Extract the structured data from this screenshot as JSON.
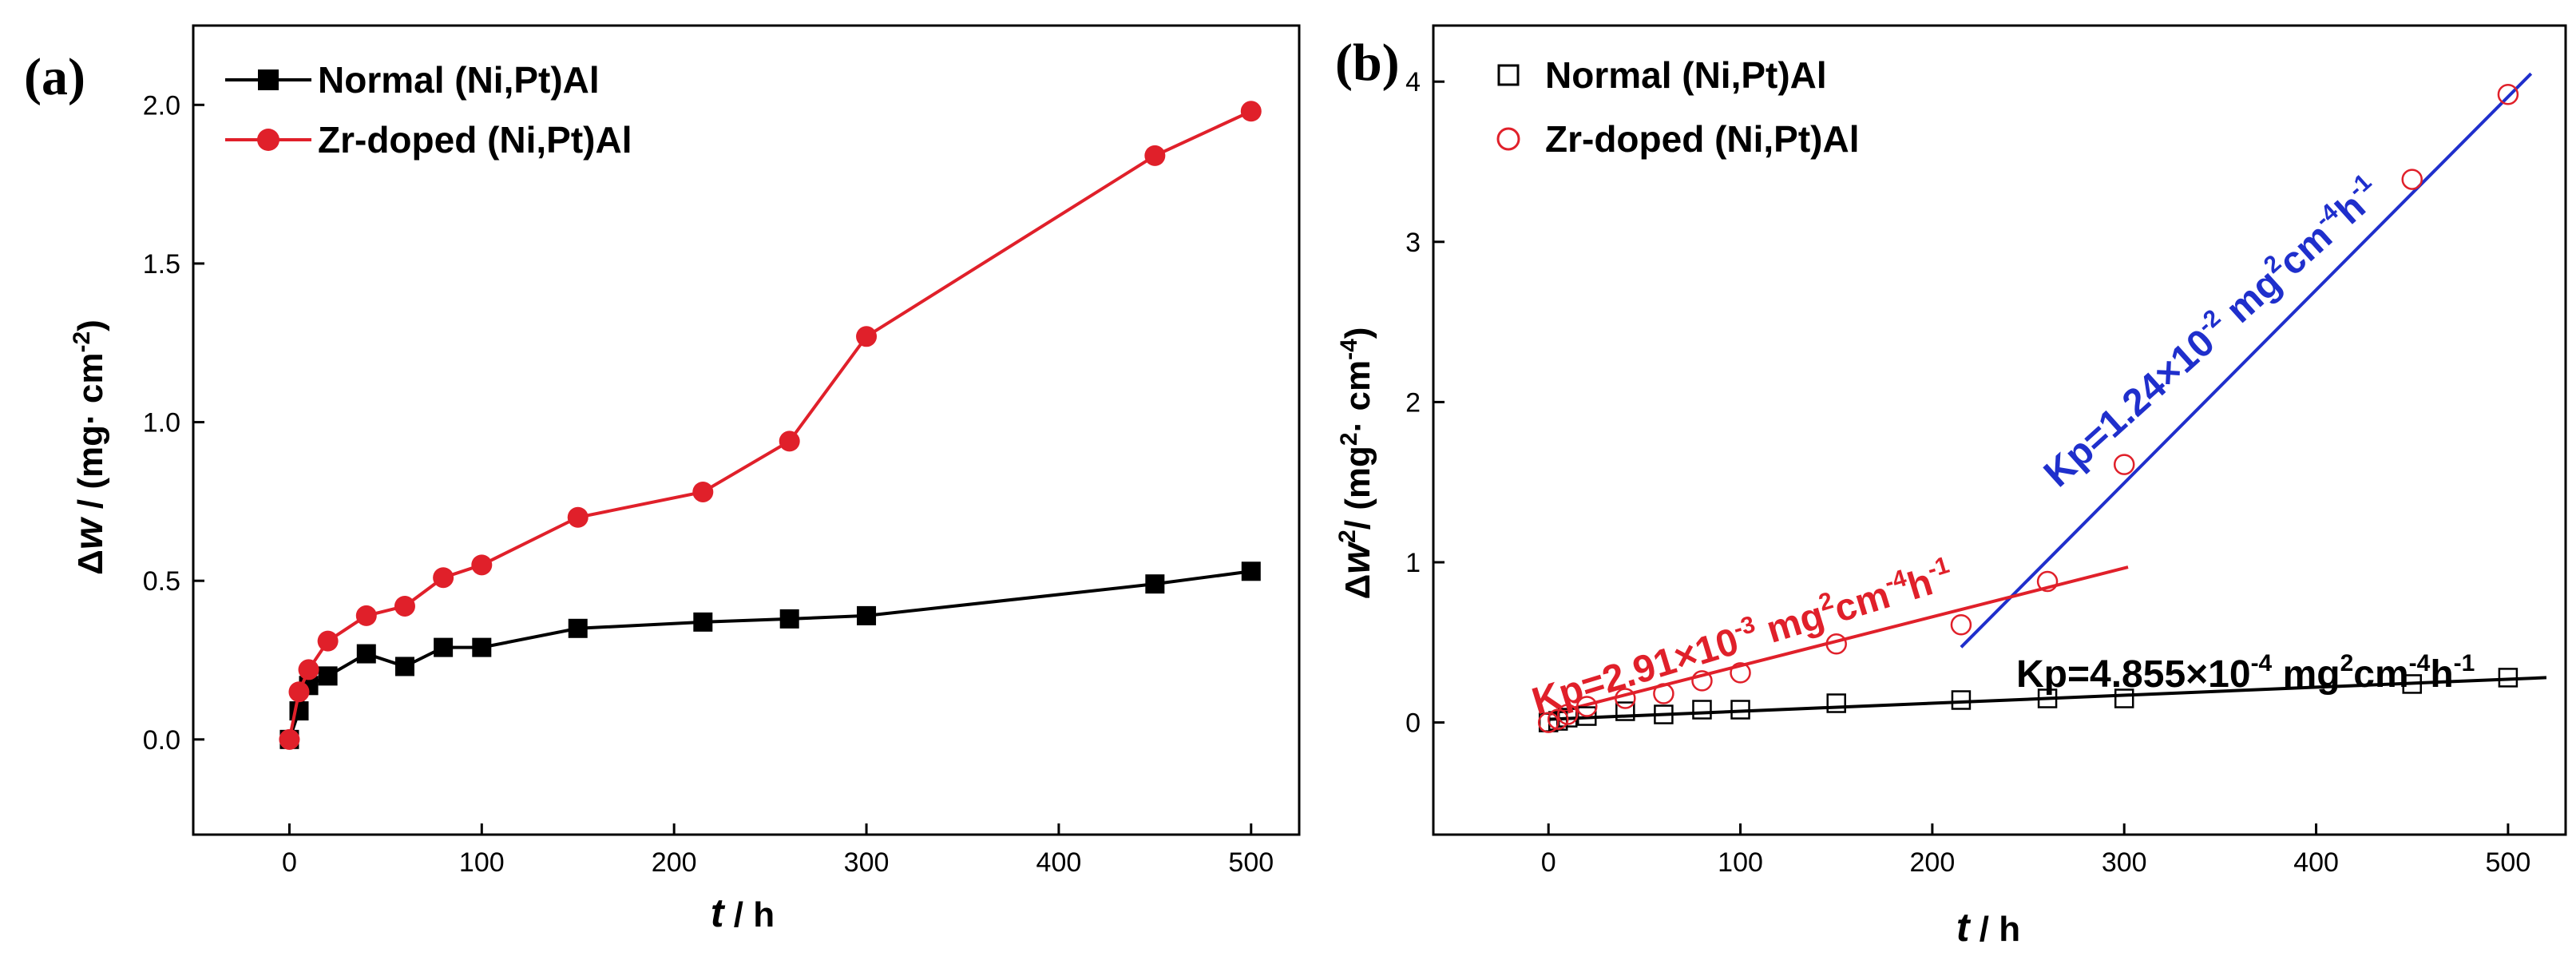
{
  "colors": {
    "normal": "#000000",
    "zr": "#e0202a",
    "fit_zr_late": "#1f2fcc",
    "fit_zr_early": "#e0202a",
    "fit_normal": "#000000"
  },
  "chart_data": [
    {
      "panel": "(a)",
      "type": "line",
      "xlabel_symbol": "t",
      "xlabel_unit": "/ h",
      "ylabel": "Δw / (mg·cm⁻²)",
      "ylabel_symbol": "w",
      "ylabel_prefix": "Δ",
      "ylabel_unit": "/ (mg· cm",
      "ylabel_exp": "-2",
      "xlim": [
        -50,
        525
      ],
      "ylim": [
        -0.3,
        2.25
      ],
      "xticks": [
        0,
        100,
        200,
        300,
        400,
        500
      ],
      "xtick_labels": [
        "0",
        "100",
        "200",
        "300",
        "400",
        "500"
      ],
      "yticks": [
        0.0,
        0.5,
        1.0,
        1.5,
        2.0
      ],
      "ytick_labels": [
        "0.0",
        "0.5",
        "1.0",
        "1.5",
        "2.0"
      ],
      "legend_position": "top-left",
      "series": [
        {
          "name": "Normal (Ni,Pt)Al",
          "color_key": "normal",
          "marker": "filled-square",
          "x": [
            0,
            5,
            10,
            20,
            40,
            60,
            80,
            100,
            150,
            215,
            260,
            300,
            450,
            500
          ],
          "y": [
            0,
            0.09,
            0.17,
            0.2,
            0.27,
            0.23,
            0.29,
            0.29,
            0.35,
            0.37,
            0.38,
            0.39,
            0.49,
            0.53
          ]
        },
        {
          "name": "Zr-doped (Ni,Pt)Al",
          "color_key": "zr",
          "marker": "filled-circle",
          "x": [
            0,
            5,
            10,
            20,
            40,
            60,
            80,
            100,
            150,
            215,
            260,
            300,
            450,
            500
          ],
          "y": [
            0,
            0.15,
            0.22,
            0.31,
            0.39,
            0.42,
            0.51,
            0.55,
            0.7,
            0.78,
            0.94,
            1.27,
            1.84,
            1.98
          ]
        }
      ]
    },
    {
      "panel": "(b)",
      "type": "scatter",
      "xlabel_symbol": "t",
      "xlabel_unit": "/ h",
      "ylabel": "Δw² / (mg²·cm⁻⁴)",
      "ylabel_prefix": "Δ",
      "ylabel_symbol": "w",
      "ylabel_unit": "/ (mg",
      "ylabel_unit2": "· cm",
      "ylabel_exp1": "2",
      "ylabel_exp2": "2",
      "ylabel_exp3": "-4",
      "xlim": [
        -60,
        530
      ],
      "ylim": [
        -0.7,
        4.35
      ],
      "xticks": [
        0,
        100,
        200,
        300,
        400,
        500
      ],
      "xtick_labels": [
        "0",
        "100",
        "200",
        "300",
        "400",
        "500"
      ],
      "yticks": [
        0,
        1,
        2,
        3,
        4
      ],
      "ytick_labels": [
        "0",
        "1",
        "2",
        "3",
        "4"
      ],
      "legend_position": "top-left",
      "series": [
        {
          "name": "Normal (Ni,Pt)Al",
          "color_key": "normal",
          "marker": "open-square",
          "x": [
            0,
            5,
            10,
            20,
            40,
            60,
            80,
            100,
            150,
            215,
            260,
            300,
            450,
            500
          ],
          "y": [
            0,
            0.01,
            0.03,
            0.04,
            0.07,
            0.05,
            0.08,
            0.08,
            0.12,
            0.14,
            0.15,
            0.15,
            0.24,
            0.28
          ]
        },
        {
          "name": "Zr-doped (Ni,Pt)Al",
          "color_key": "zr",
          "marker": "open-circle",
          "x": [
            0,
            5,
            10,
            20,
            40,
            60,
            80,
            100,
            150,
            215,
            260,
            300,
            450,
            500
          ],
          "y": [
            0,
            0.02,
            0.05,
            0.1,
            0.15,
            0.18,
            0.26,
            0.31,
            0.49,
            0.61,
            0.88,
            1.61,
            3.39,
            3.92
          ]
        }
      ],
      "fits": [
        {
          "name": "Zr-doped late stage",
          "color_key": "fit_zr_late",
          "x": [
            215,
            512
          ],
          "y": [
            0.47,
            4.05
          ]
        },
        {
          "name": "Zr-doped early stage",
          "color_key": "fit_zr_early",
          "x": [
            0,
            302
          ],
          "y": [
            0.05,
            0.97
          ]
        },
        {
          "name": "Normal",
          "color_key": "fit_normal",
          "x": [
            0,
            520
          ],
          "y": [
            0.02,
            0.28
          ]
        }
      ],
      "annotations": [
        {
          "color_key": "fit_zr_late",
          "prefix": "Kp=1.24×10",
          "exp": "-2",
          "mid": " mg",
          "exp2": "2",
          "mid2": "cm",
          "exp3": "-4",
          "end": "h",
          "exp4": "-1"
        },
        {
          "color_key": "fit_zr_early",
          "prefix": "Kp=2.91×10",
          "exp": "-3",
          "mid": " mg",
          "exp2": "2",
          "mid2": "cm",
          "exp3": "-4",
          "end": "h",
          "exp4": "-1"
        },
        {
          "color_key": "fit_normal",
          "prefix": "Kp=4.855×10",
          "exp": "-4",
          "mid": "  mg",
          "exp2": "2",
          "mid2": "cm",
          "exp3": "-4",
          "end": "h",
          "exp4": "-1"
        }
      ]
    }
  ]
}
